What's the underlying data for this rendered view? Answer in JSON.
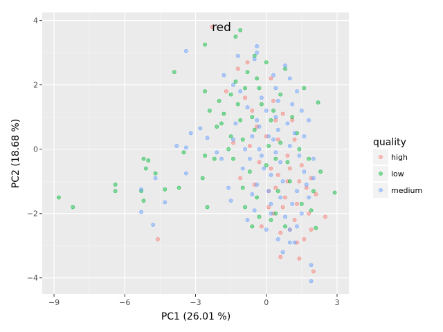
{
  "chart_data": {
    "type": "scatter",
    "title": "",
    "xlabel": "PC1 (26.01 %)",
    "ylabel": "PC2 (18.68 %)",
    "xlim": [
      -9.5,
      3.5
    ],
    "ylim": [
      -4.5,
      4.25
    ],
    "x_ticks": [
      -9,
      -6,
      -3,
      0,
      3
    ],
    "x_tick_labels": [
      "−9",
      "−6",
      "−3",
      "0",
      "3"
    ],
    "y_ticks": [
      -4,
      -2,
      0,
      2,
      4
    ],
    "y_tick_labels": [
      "−4",
      "−2",
      "0",
      "2",
      "4"
    ],
    "grid": true,
    "panel_background": "#ebebeb",
    "annotation": {
      "text": "red",
      "x": -2.0,
      "y": 3.8
    },
    "legend": {
      "title": "quality",
      "position": "right"
    },
    "series": [
      {
        "name": "high",
        "color": "#f8766d",
        "points": [
          [
            -2.3,
            3.8
          ],
          [
            -4.6,
            -2.8
          ],
          [
            2.0,
            -3.8
          ],
          [
            1.4,
            -3.4
          ],
          [
            0.6,
            -3.35
          ],
          [
            2.5,
            -2.1
          ],
          [
            1.9,
            -2.5
          ],
          [
            1.6,
            -2.8
          ],
          [
            1.2,
            -2.2
          ],
          [
            0.8,
            -1.5
          ],
          [
            1.0,
            -0.6
          ],
          [
            0.9,
            -1.0
          ],
          [
            1.3,
            -1.7
          ],
          [
            0.4,
            -1.2
          ],
          [
            0.7,
            -1.8
          ],
          [
            0.2,
            -0.6
          ],
          [
            0.5,
            0.3
          ],
          [
            -0.3,
            -0.4
          ],
          [
            0.1,
            -1.3
          ],
          [
            -0.6,
            1.2
          ],
          [
            -0.9,
            1.6
          ],
          [
            -0.4,
            0.7
          ],
          [
            1.1,
            0.9
          ],
          [
            -1.2,
            2.5
          ],
          [
            -0.8,
            2.7
          ],
          [
            0.3,
            1.5
          ],
          [
            1.5,
            -0.5
          ],
          [
            2.1,
            -1.4
          ],
          [
            1.8,
            -2.0
          ],
          [
            0.6,
            -2.6
          ],
          [
            -0.2,
            -2.4
          ],
          [
            1.4,
            -1.0
          ],
          [
            0.9,
            -0.2
          ],
          [
            -0.5,
            -1.1
          ],
          [
            0.0,
            0.4
          ],
          [
            1.7,
            -1.2
          ],
          [
            0.5,
            -0.8
          ],
          [
            -1.4,
            0.2
          ],
          [
            -1.1,
            -0.9
          ],
          [
            1.2,
            0.3
          ],
          [
            0.3,
            -2.0
          ],
          [
            1.0,
            -2.5
          ],
          [
            0.2,
            2.2
          ],
          [
            -1.7,
            1.8
          ],
          [
            0.7,
            1.1
          ],
          [
            1.9,
            -0.9
          ],
          [
            0.4,
            0.9
          ],
          [
            -0.7,
            0.1
          ],
          [
            1.3,
            -2.9
          ],
          [
            0.1,
            -1.8
          ]
        ]
      },
      {
        "name": "low",
        "color": "#00ba38",
        "points": [
          [
            -8.8,
            -1.5
          ],
          [
            -8.2,
            -1.8
          ],
          [
            -6.4,
            -1.1
          ],
          [
            -6.4,
            -1.3
          ],
          [
            -5.2,
            -0.3
          ],
          [
            -5.0,
            -0.35
          ],
          [
            -5.1,
            -0.6
          ],
          [
            -4.7,
            -0.75
          ],
          [
            -5.3,
            -1.3
          ],
          [
            -5.2,
            -1.6
          ],
          [
            -4.3,
            -1.25
          ],
          [
            -3.7,
            -1.2
          ],
          [
            -3.9,
            2.4
          ],
          [
            -3.5,
            -0.1
          ],
          [
            -2.6,
            3.25
          ],
          [
            -2.6,
            1.8
          ],
          [
            -2.5,
            -1.8
          ],
          [
            -2.7,
            -0.9
          ],
          [
            -2.6,
            -0.2
          ],
          [
            -2.4,
            1.2
          ],
          [
            -2.2,
            -0.3
          ],
          [
            -1.5,
            1.7
          ],
          [
            -1.3,
            3.5
          ],
          [
            -1.1,
            3.7
          ],
          [
            -0.9,
            1.9
          ],
          [
            -0.5,
            2.9
          ],
          [
            0.0,
            2.7
          ],
          [
            -0.4,
            2.2
          ],
          [
            -0.8,
            2.4
          ],
          [
            0.8,
            2.5
          ],
          [
            1.6,
            1.9
          ],
          [
            2.2,
            1.45
          ],
          [
            2.9,
            -1.35
          ],
          [
            2.3,
            -0.7
          ],
          [
            2.0,
            -1.3
          ],
          [
            2.1,
            -2.45
          ],
          [
            1.0,
            -1.0
          ],
          [
            0.4,
            -2.0
          ],
          [
            0.2,
            -2.2
          ],
          [
            -0.6,
            -2.4
          ],
          [
            -0.3,
            -2.1
          ],
          [
            -1.0,
            -1.2
          ],
          [
            -1.5,
            0.4
          ],
          [
            -1.8,
            1.1
          ],
          [
            -1.9,
            0.8
          ],
          [
            -1.2,
            1.4
          ],
          [
            -0.5,
            0.6
          ],
          [
            0.2,
            0.9
          ],
          [
            0.6,
            0.2
          ],
          [
            0.9,
            -0.4
          ],
          [
            1.3,
            0.5
          ],
          [
            -0.2,
            1.4
          ],
          [
            -1.4,
            -0.3
          ],
          [
            -0.7,
            -0.7
          ],
          [
            0.5,
            -1.3
          ],
          [
            1.8,
            -0.3
          ],
          [
            1.5,
            -1.7
          ],
          [
            -1.1,
            0.9
          ],
          [
            -0.3,
            1.9
          ],
          [
            0.3,
            1.2
          ],
          [
            -2.0,
            1.5
          ],
          [
            -1.6,
            0.0
          ],
          [
            1.1,
            1.0
          ],
          [
            0.0,
            -0.5
          ],
          [
            -0.9,
            -1.8
          ],
          [
            0.8,
            -2.4
          ],
          [
            1.9,
            -1.9
          ],
          [
            -2.1,
            0.7
          ],
          [
            -1.3,
            2.1
          ],
          [
            0.6,
            1.7
          ],
          [
            -0.6,
            1.0
          ],
          [
            1.4,
            0.0
          ],
          [
            0.1,
            0.1
          ],
          [
            -0.4,
            -1.5
          ],
          [
            -1.0,
            0.3
          ],
          [
            0.4,
            -0.3
          ]
        ]
      },
      {
        "name": "medium",
        "color": "#619cff",
        "points": [
          [
            -3.4,
            3.05
          ],
          [
            -3.8,
            0.1
          ],
          [
            -3.4,
            0.05
          ],
          [
            -3.2,
            0.5
          ],
          [
            -2.8,
            0.65
          ],
          [
            -4.7,
            -0.9
          ],
          [
            -5.3,
            -1.25
          ],
          [
            -5.3,
            -1.95
          ],
          [
            -4.8,
            -2.35
          ],
          [
            -4.3,
            -1.65
          ],
          [
            -3.4,
            -0.75
          ],
          [
            -2.5,
            0.35
          ],
          [
            -1.9,
            -0.3
          ],
          [
            -1.8,
            2.3
          ],
          [
            -1.4,
            2.0
          ],
          [
            -1.2,
            2.9
          ],
          [
            -0.4,
            3.0
          ],
          [
            -0.4,
            3.2
          ],
          [
            -0.5,
            2.8
          ],
          [
            0.8,
            2.6
          ],
          [
            1.0,
            2.2
          ],
          [
            0.4,
            1.9
          ],
          [
            1.3,
            1.8
          ],
          [
            1.5,
            1.2
          ],
          [
            1.8,
            0.9
          ],
          [
            1.6,
            0.4
          ],
          [
            2.0,
            -0.3
          ],
          [
            1.6,
            -0.7
          ],
          [
            2.0,
            -0.9
          ],
          [
            1.3,
            -1.3
          ],
          [
            1.8,
            -1.5
          ],
          [
            1.5,
            -2.0
          ],
          [
            1.0,
            -2.5
          ],
          [
            1.2,
            -2.9
          ],
          [
            0.5,
            -2.8
          ],
          [
            0.0,
            -2.5
          ],
          [
            -0.8,
            -2.2
          ],
          [
            -0.5,
            -1.9
          ],
          [
            -1.5,
            -1.6
          ],
          [
            -0.4,
            -1.1
          ],
          [
            0.2,
            -0.8
          ],
          [
            -0.2,
            -0.2
          ],
          [
            0.3,
            0.3
          ],
          [
            -0.3,
            0.7
          ],
          [
            0.4,
            1.0
          ],
          [
            -0.6,
            0.4
          ],
          [
            0.6,
            -0.4
          ],
          [
            1.0,
            0.1
          ],
          [
            -1.0,
            -0.6
          ],
          [
            0.1,
            -1.3
          ],
          [
            0.7,
            -1.0
          ],
          [
            -0.8,
            1.3
          ],
          [
            -0.2,
            1.6
          ],
          [
            0.9,
            0.8
          ],
          [
            1.1,
            -1.7
          ],
          [
            0.2,
            -2.0
          ],
          [
            -0.3,
            0.0
          ],
          [
            0.5,
            0.6
          ],
          [
            -0.7,
            -0.3
          ],
          [
            0.0,
            1.2
          ],
          [
            1.4,
            -0.2
          ],
          [
            -1.3,
            0.8
          ],
          [
            0.6,
            -1.5
          ],
          [
            0.3,
            2.3
          ],
          [
            -0.1,
            -0.6
          ],
          [
            1.2,
            0.5
          ],
          [
            -1.1,
            1.8
          ],
          [
            0.8,
            -2.1
          ],
          [
            1.7,
            -1.1
          ],
          [
            1.9,
            -4.1
          ],
          [
            1.9,
            -3.6
          ],
          [
            1.0,
            -2.9
          ],
          [
            0.7,
            -3.2
          ],
          [
            -1.6,
            -1.2
          ],
          [
            -2.1,
            -0.1
          ],
          [
            -1.4,
            0.3
          ],
          [
            -0.9,
            0.0
          ],
          [
            0.1,
            0.4
          ],
          [
            0.4,
            -0.1
          ],
          [
            -0.4,
            0.9
          ],
          [
            1.1,
            1.4
          ],
          [
            0.5,
            1.5
          ],
          [
            -0.6,
            -1.4
          ],
          [
            0.2,
            -1.7
          ],
          [
            1.3,
            -2.4
          ]
        ]
      }
    ]
  }
}
